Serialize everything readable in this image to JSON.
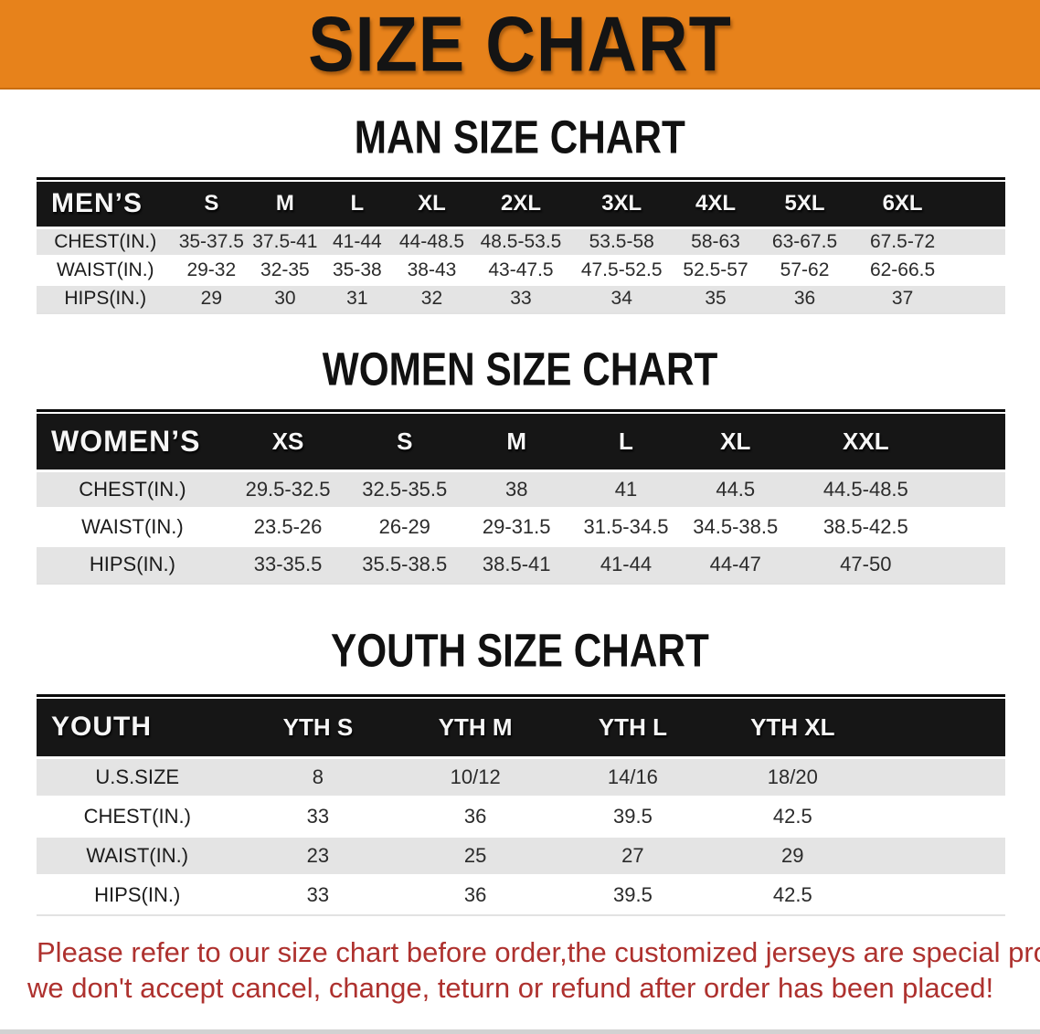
{
  "banner": {
    "title": "SIZE CHART"
  },
  "man_chart": {
    "heading": "MAN SIZE CHART",
    "table": {
      "header_label": "MEN’S",
      "columns": [
        "S",
        "M",
        "L",
        "XL",
        "2XL",
        "3XL",
        "4XL",
        "5XL",
        "6XL"
      ],
      "rows": [
        {
          "label": "CHEST(IN.)",
          "values": [
            "35-37.5",
            "37.5-41",
            "41-44",
            "44-48.5",
            "48.5-53.5",
            "53.5-58",
            "58-63",
            "63-67.5",
            "67.5-72"
          ]
        },
        {
          "label": "WAIST(IN.)",
          "values": [
            "29-32",
            "32-35",
            "35-38",
            "38-43",
            "43-47.5",
            "47.5-52.5",
            "52.5-57",
            "57-62",
            "62-66.5"
          ]
        },
        {
          "label": "HIPS(IN.)",
          "values": [
            "29",
            "30",
            "31",
            "32",
            "33",
            "34",
            "35",
            "36",
            "37"
          ]
        }
      ]
    }
  },
  "women_chart": {
    "heading": "WOMEN SIZE CHART",
    "table": {
      "header_label": "WOMEN’S",
      "columns": [
        "XS",
        "S",
        "M",
        "L",
        "XL",
        "XXL"
      ],
      "rows": [
        {
          "label": "CHEST(IN.)",
          "values": [
            "29.5-32.5",
            "32.5-35.5",
            "38",
            "41",
            "44.5",
            "44.5-48.5"
          ]
        },
        {
          "label": "WAIST(IN.)",
          "values": [
            "23.5-26",
            "26-29",
            "29-31.5",
            "31.5-34.5",
            "34.5-38.5",
            "38.5-42.5"
          ]
        },
        {
          "label": "HIPS(IN.)",
          "values": [
            "33-35.5",
            "35.5-38.5",
            "38.5-41",
            "41-44",
            "44-47",
            "47-50"
          ]
        }
      ]
    }
  },
  "youth_chart": {
    "heading": "YOUTH SIZE CHART",
    "table": {
      "header_label": "YOUTH",
      "columns": [
        "YTH S",
        "YTH M",
        "YTH L",
        "YTH XL"
      ],
      "rows": [
        {
          "label": "U.S.SIZE",
          "values": [
            "8",
            "10/12",
            "14/16",
            "18/20"
          ]
        },
        {
          "label": "CHEST(IN.)",
          "values": [
            "33",
            "36",
            "39.5",
            "42.5"
          ]
        },
        {
          "label": "WAIST(IN.)",
          "values": [
            "23",
            "25",
            "27",
            "29"
          ]
        },
        {
          "label": "HIPS(IN.)",
          "values": [
            "33",
            "36",
            "39.5",
            "42.5"
          ]
        }
      ]
    }
  },
  "footer_note": {
    "line1": "Please refer to our size chart before order,the customized jerseys are special products,",
    "line2": "we don't accept cancel, change, teturn or refund after order has been placed!"
  },
  "colors": {
    "banner_bg": "#E7821B",
    "band_bg": "#161616",
    "row_gray": "#E4E4E4",
    "footer_red": "#AE312E"
  }
}
